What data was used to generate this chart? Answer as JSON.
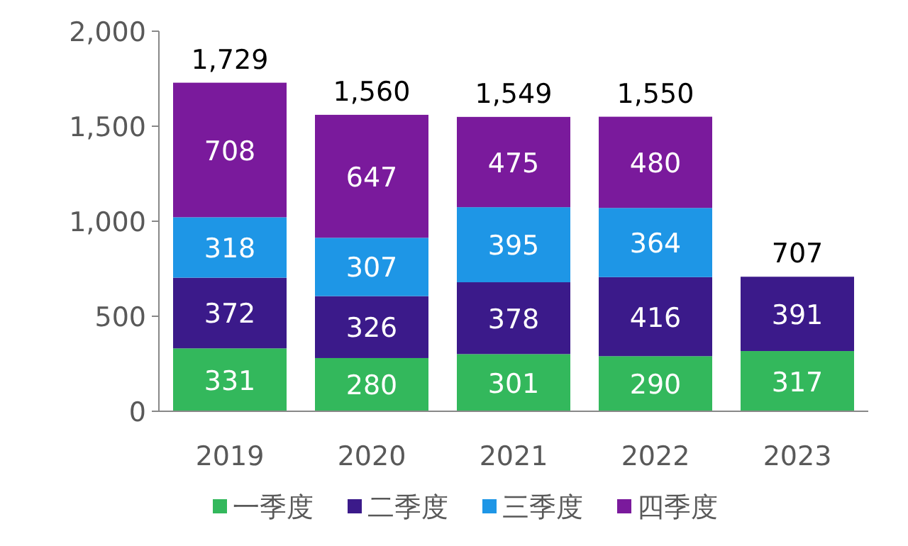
{
  "chart_data": {
    "type": "bar",
    "stacked": true,
    "categories": [
      "2019",
      "2020",
      "2021",
      "2022",
      "2023"
    ],
    "series": [
      {
        "name": "一季度",
        "color": "#33b85c",
        "values": [
          331,
          280,
          301,
          290,
          317
        ]
      },
      {
        "name": "二季度",
        "color": "#3b1a8a",
        "values": [
          372,
          326,
          378,
          416,
          391
        ]
      },
      {
        "name": "三季度",
        "color": "#1e96e6",
        "values": [
          318,
          307,
          395,
          364,
          null
        ]
      },
      {
        "name": "四季度",
        "color": "#7a1a9c",
        "values": [
          708,
          647,
          475,
          480,
          null
        ]
      }
    ],
    "totals": [
      "1,729",
      "1,560",
      "1,549",
      "1,550",
      "707"
    ],
    "data_labels": true,
    "ylim": [
      0,
      2000
    ],
    "yticks": [
      0,
      {
        "value": 500,
        "label": "500"
      },
      {
        "value": 1000,
        "label": "1,000"
      },
      {
        "value": 1500,
        "label": "1,500"
      },
      {
        "value": 2000,
        "label": "2,000"
      }
    ],
    "grid": false,
    "legend": "bottom"
  }
}
